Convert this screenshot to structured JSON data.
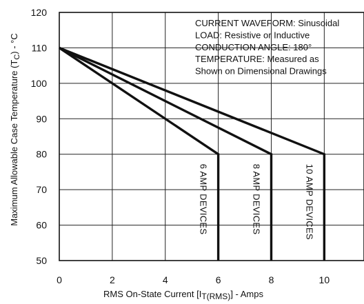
{
  "chart_data": {
    "type": "line",
    "xlabel": "RMS On-State Current [I",
    "xlabel_sub": "T(RMS)",
    "xlabel_end": "] - Amps",
    "ylabel": "Maximum Allowable Case Temperature (T",
    "ylabel_sub": "C",
    "ylabel_end": ") - °C",
    "xlim": [
      0,
      11.5
    ],
    "ylim": [
      50,
      120
    ],
    "x_ticks": [
      "0",
      "2",
      "4",
      "6",
      "8",
      "10"
    ],
    "y_ticks": [
      "50",
      "60",
      "70",
      "80",
      "90",
      "100",
      "110",
      "120"
    ],
    "grid": true,
    "annotations": [
      "CURRENT WAVEFORM: Sinusoidal",
      "LOAD: Resistive or Inductive",
      "CONDUCTION ANGLE: 180°",
      "TEMPERATURE: Measured as",
      "Shown on Dimensional Drawings"
    ],
    "series": [
      {
        "label": "6 AMP DEVICES",
        "x": [
          0,
          6,
          6
        ],
        "y": [
          110,
          80,
          50
        ]
      },
      {
        "label": "8 AMP DEVICES",
        "x": [
          0,
          8,
          8
        ],
        "y": [
          110,
          80,
          50
        ]
      },
      {
        "label": "10 AMP DEVICES",
        "x": [
          0,
          10,
          10
        ],
        "y": [
          110,
          80,
          50
        ]
      }
    ]
  }
}
